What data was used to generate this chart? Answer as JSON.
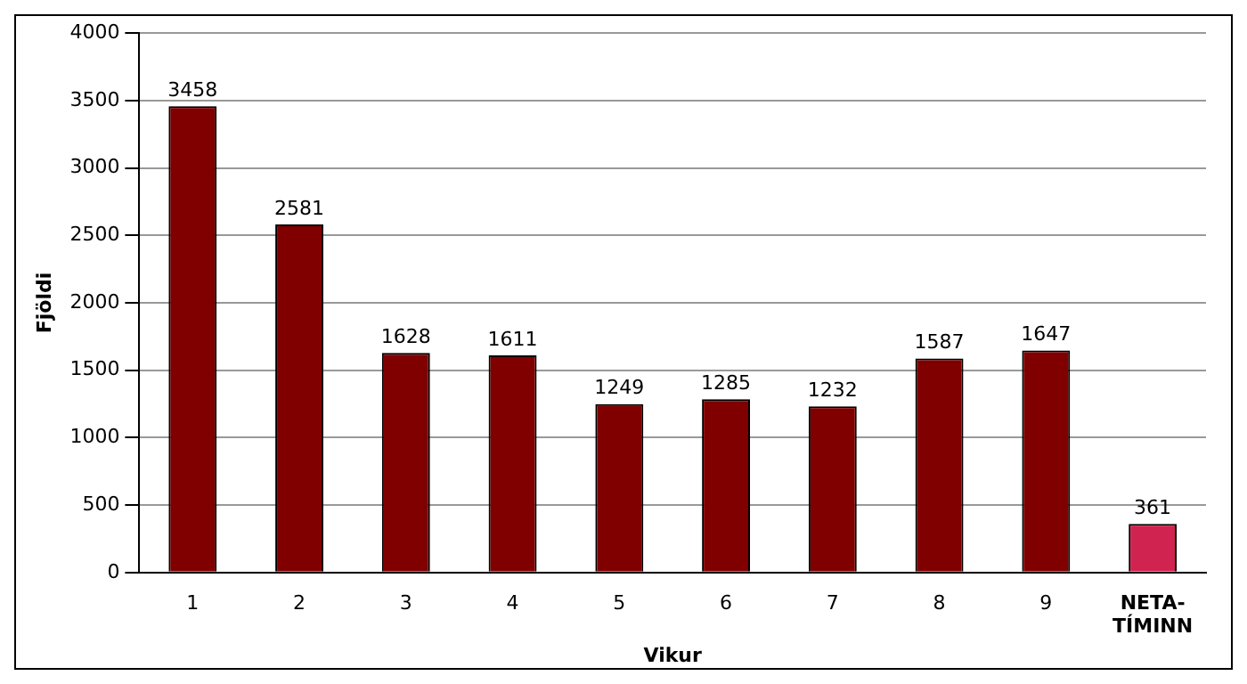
{
  "chart_data": {
    "type": "bar",
    "xlabel": "Vikur",
    "ylabel": "Fjöldi",
    "categories": [
      "1",
      "2",
      "3",
      "4",
      "5",
      "6",
      "7",
      "8",
      "9",
      "NETA-TÍMINN"
    ],
    "values": [
      3458,
      2581,
      1628,
      1611,
      1249,
      1285,
      1232,
      1587,
      1647,
      361
    ],
    "colors": [
      "#800000",
      "#800000",
      "#800000",
      "#800000",
      "#800000",
      "#800000",
      "#800000",
      "#800000",
      "#800000",
      "#d0234f"
    ],
    "ylim": [
      0,
      4000
    ],
    "yticks": [
      0,
      500,
      1000,
      1500,
      2000,
      2500,
      3000,
      3500,
      4000
    ],
    "grid": "y",
    "data_labels": true,
    "legend": false
  }
}
